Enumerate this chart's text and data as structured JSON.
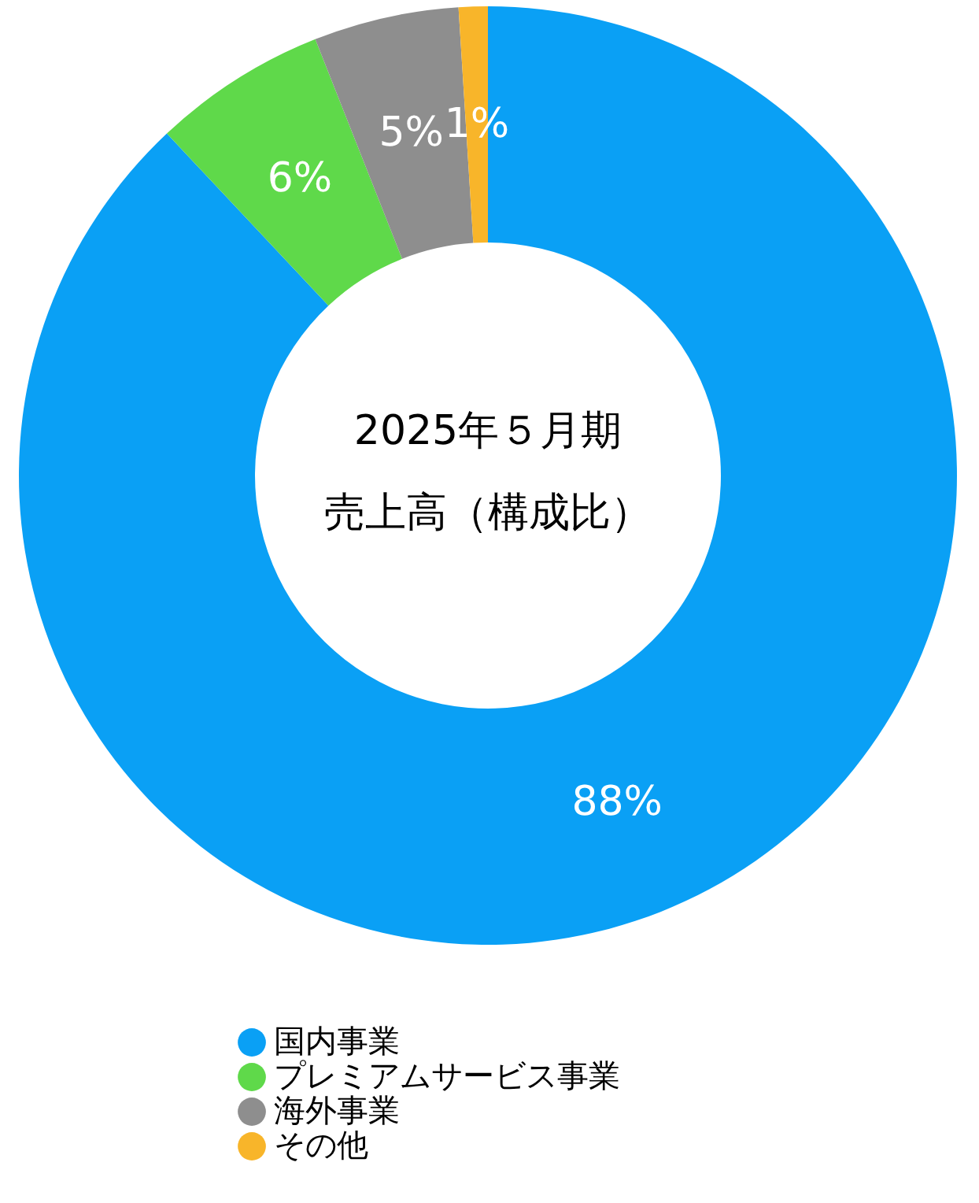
{
  "chart_data": {
    "type": "donut",
    "title": "2025年５月期",
    "subtitle": "売上高（構成比）",
    "categories": [
      "国内事業",
      "プレミアムサービス事業",
      "海外事業",
      "その他"
    ],
    "values": [
      88,
      6,
      5,
      1
    ],
    "colors": [
      "#0aa0f5",
      "#5fd94a",
      "#8e8e8e",
      "#f8b52a"
    ],
    "value_labels": [
      "88%",
      "6%",
      "5%",
      "1%"
    ],
    "legend": "bottom"
  }
}
